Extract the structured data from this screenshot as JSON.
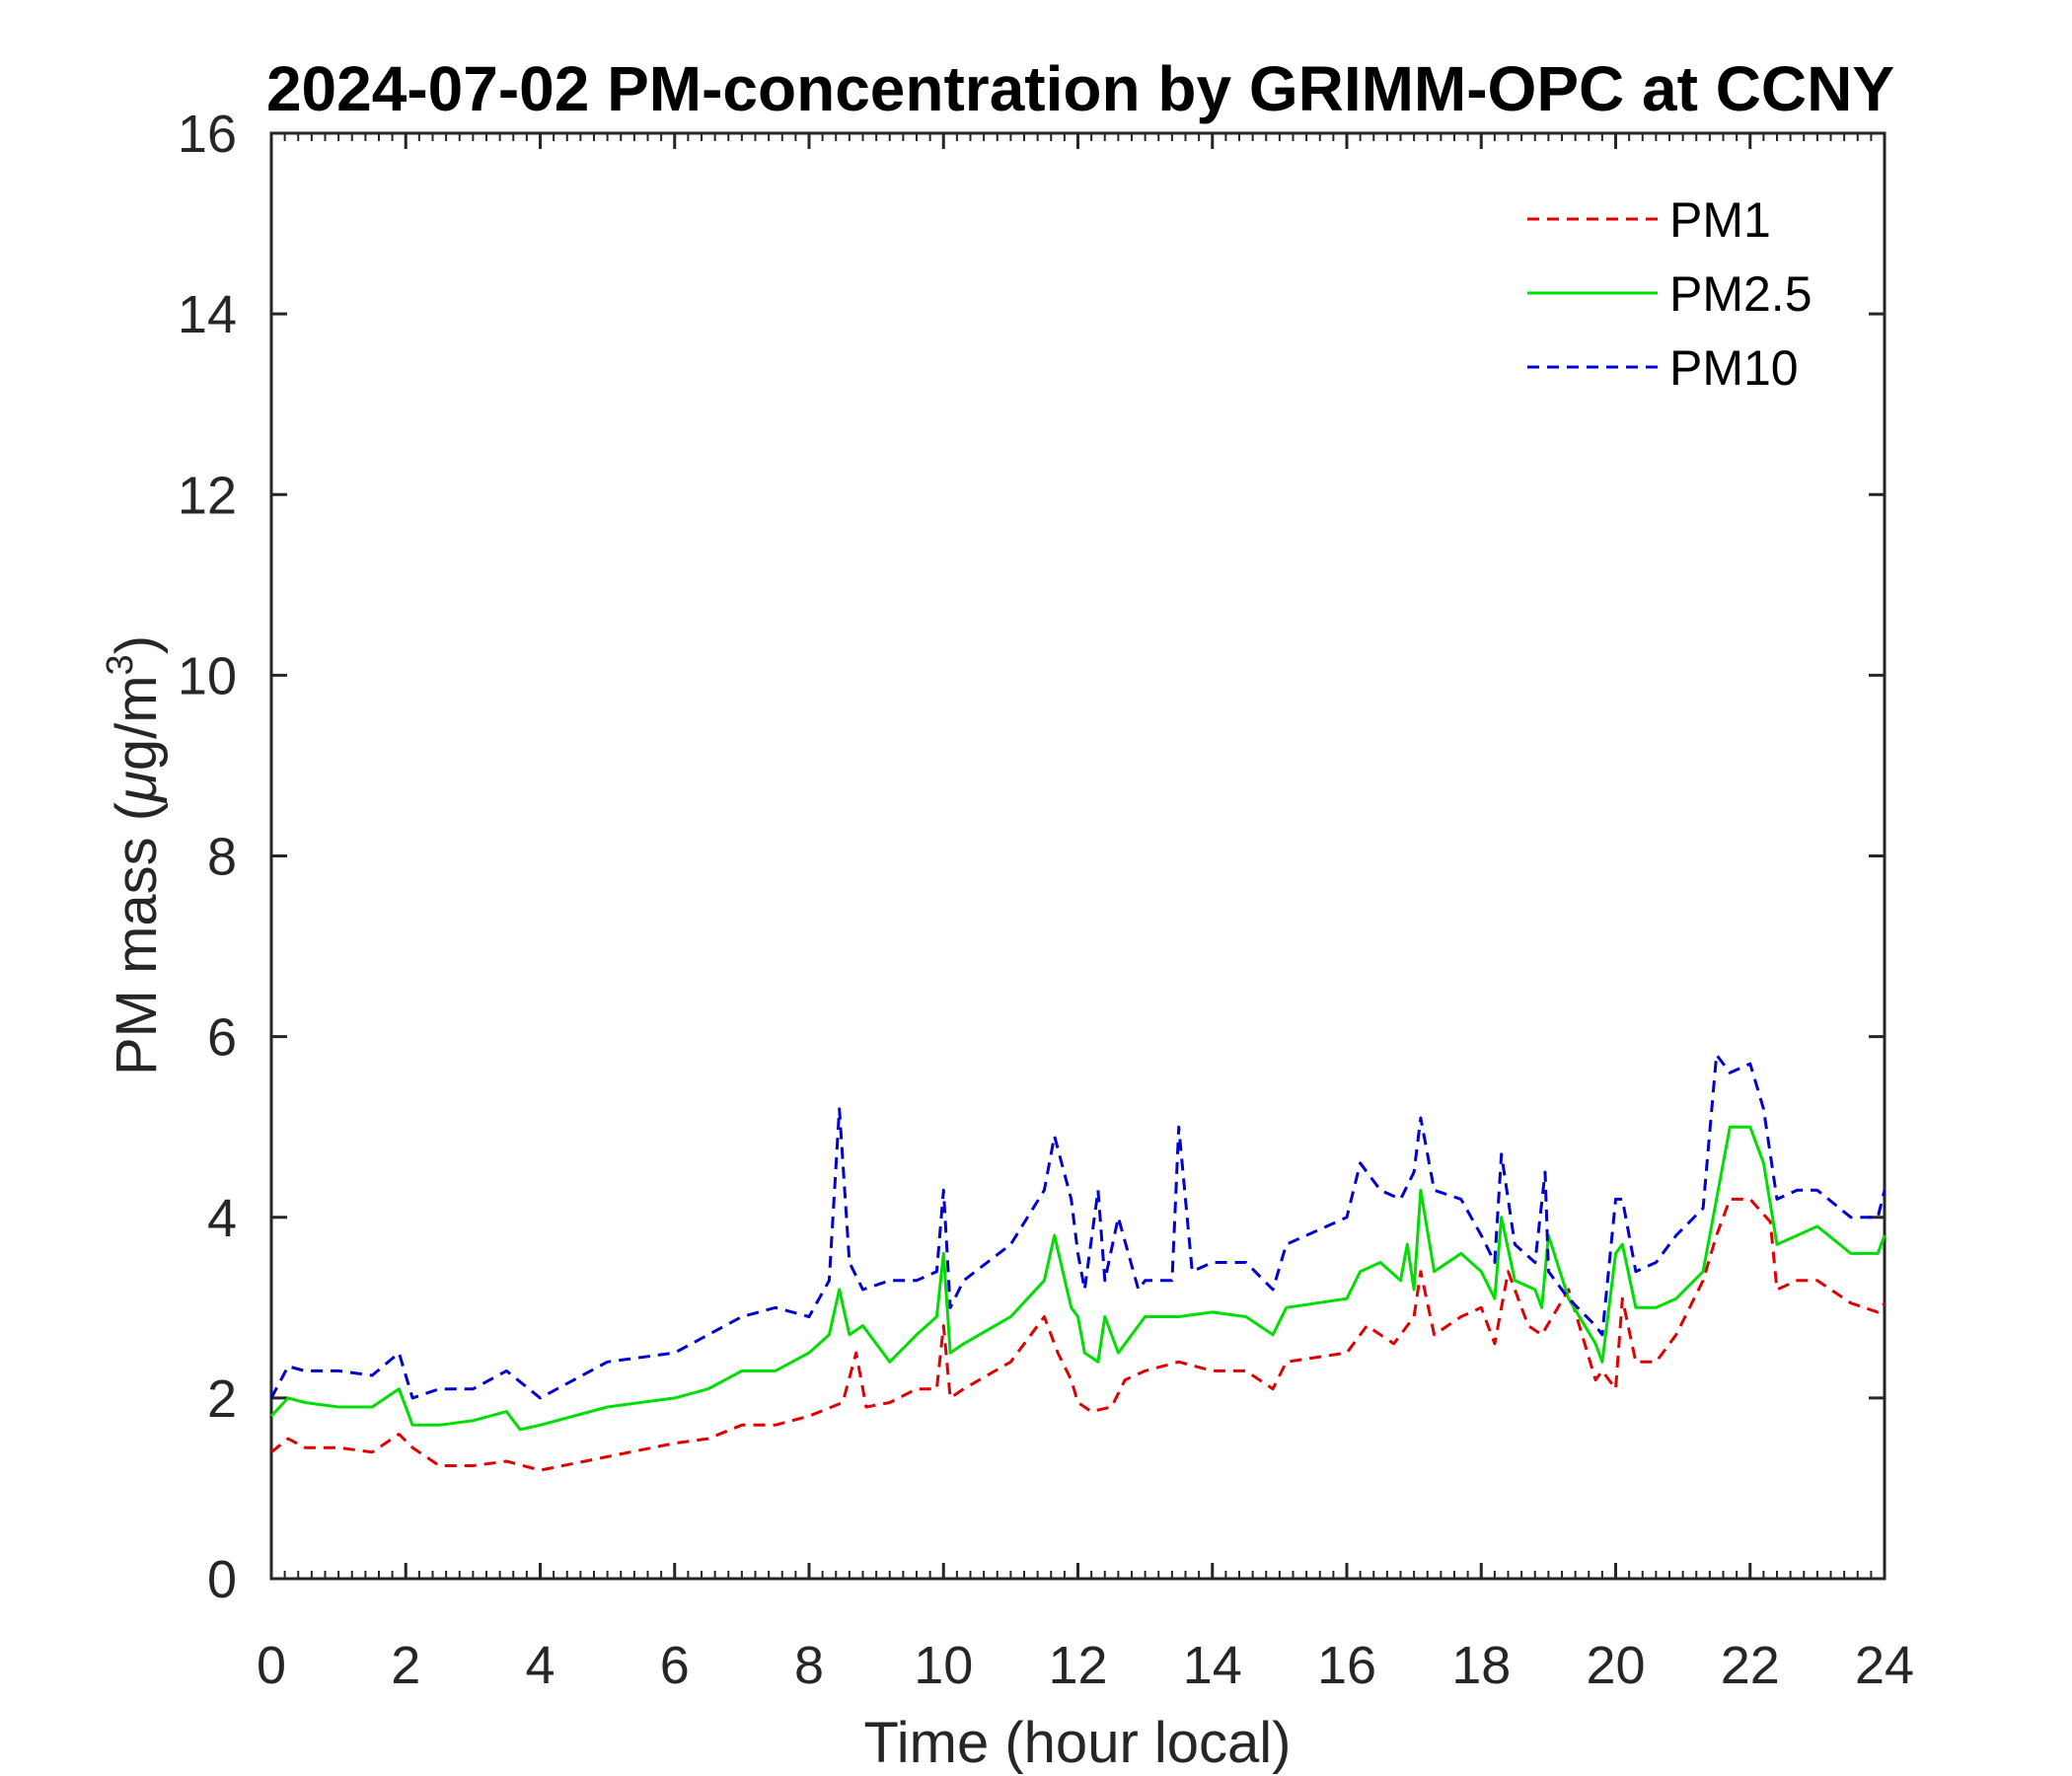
{
  "chart_data": {
    "type": "line",
    "title": "2024-07-02 PM-concentration by GRIMM-OPC at CCNY",
    "xlabel": "Time (hour local)",
    "ylabel": {
      "prefix": "PM mass (",
      "mu": "μ",
      "unit": "g/m",
      "sup": "3",
      "suffix": ")"
    },
    "xlim": [
      0,
      24
    ],
    "ylim": [
      0,
      16
    ],
    "xticks": [
      0,
      2,
      4,
      6,
      8,
      10,
      12,
      14,
      16,
      18,
      20,
      22,
      24
    ],
    "xtick_labels": [
      "0",
      "2",
      "4",
      "6",
      "8",
      "10",
      "12",
      "14",
      "16",
      "18",
      "20",
      "22",
      "24"
    ],
    "yticks": [
      0,
      2,
      4,
      6,
      8,
      10,
      12,
      14,
      16
    ],
    "ytick_labels": [
      "0",
      "2",
      "4",
      "6",
      "8",
      "10",
      "12",
      "14",
      "16"
    ],
    "grid": false,
    "legend_position": "top-right",
    "series": [
      {
        "name": "PM1",
        "color": "#e00000",
        "style": "dashed",
        "x": [
          0,
          0.25,
          0.5,
          1,
          1.5,
          1.9,
          2.1,
          2.5,
          3,
          3.5,
          4,
          5,
          6,
          6.5,
          7,
          7.5,
          8,
          8.5,
          8.7,
          8.85,
          9.2,
          9.6,
          9.9,
          10.0,
          10.1,
          10.3,
          11,
          11.5,
          11.7,
          11.9,
          12.0,
          12.2,
          12.5,
          12.7,
          13,
          13.5,
          14,
          14.5,
          14.9,
          15.1,
          16,
          16.3,
          16.7,
          17.0,
          17.1,
          17.3,
          17.7,
          18.0,
          18.2,
          18.4,
          18.7,
          18.9,
          19.3,
          19.7,
          19.8,
          20.0,
          20.1,
          20.3,
          20.6,
          20.9,
          21.3,
          21.5,
          21.7,
          22.0,
          22.3,
          22.4,
          22.7,
          23.0,
          23.5,
          23.9,
          24.0
        ],
        "y": [
          1.4,
          1.55,
          1.45,
          1.45,
          1.4,
          1.6,
          1.45,
          1.25,
          1.25,
          1.3,
          1.2,
          1.35,
          1.5,
          1.55,
          1.7,
          1.7,
          1.8,
          1.95,
          2.5,
          1.9,
          1.95,
          2.1,
          2.1,
          2.8,
          2.0,
          2.1,
          2.4,
          2.9,
          2.5,
          2.2,
          1.95,
          1.85,
          1.9,
          2.2,
          2.3,
          2.4,
          2.3,
          2.3,
          2.1,
          2.4,
          2.5,
          2.8,
          2.6,
          2.9,
          3.4,
          2.7,
          2.9,
          3.0,
          2.6,
          3.4,
          2.8,
          2.7,
          3.2,
          2.2,
          2.3,
          2.1,
          3.1,
          2.4,
          2.4,
          2.7,
          3.3,
          3.8,
          4.2,
          4.2,
          3.95,
          3.2,
          3.3,
          3.3,
          3.05,
          2.95,
          3.05
        ]
      },
      {
        "name": "PM2.5",
        "color": "#00dd00",
        "style": "solid",
        "x": [
          0,
          0.25,
          0.5,
          1,
          1.5,
          1.9,
          2.1,
          2.5,
          3,
          3.5,
          3.7,
          4,
          5,
          6,
          6.5,
          7,
          7.5,
          8,
          8.3,
          8.45,
          8.6,
          8.8,
          9.2,
          9.6,
          9.9,
          10.0,
          10.1,
          10.3,
          11,
          11.5,
          11.65,
          11.9,
          12.0,
          12.1,
          12.3,
          12.4,
          12.6,
          12.9,
          13,
          13.5,
          14,
          14.5,
          14.9,
          15.1,
          16,
          16.2,
          16.5,
          16.8,
          16.9,
          17.0,
          17.1,
          17.3,
          17.7,
          18.0,
          18.2,
          18.3,
          18.5,
          18.8,
          18.9,
          19.0,
          19.3,
          19.7,
          19.8,
          20.0,
          20.1,
          20.3,
          20.6,
          20.9,
          21.3,
          21.5,
          21.7,
          22.0,
          22.2,
          22.4,
          22.7,
          23.0,
          23.5,
          23.9,
          24.0
        ],
        "y": [
          1.8,
          2.0,
          1.95,
          1.9,
          1.9,
          2.1,
          1.7,
          1.7,
          1.75,
          1.85,
          1.65,
          1.7,
          1.9,
          2.0,
          2.1,
          2.3,
          2.3,
          2.5,
          2.7,
          3.2,
          2.7,
          2.8,
          2.4,
          2.7,
          2.9,
          3.6,
          2.5,
          2.6,
          2.9,
          3.3,
          3.8,
          3.0,
          2.9,
          2.5,
          2.4,
          2.9,
          2.5,
          2.8,
          2.9,
          2.9,
          2.95,
          2.9,
          2.7,
          3.0,
          3.1,
          3.4,
          3.5,
          3.3,
          3.7,
          3.2,
          4.3,
          3.4,
          3.6,
          3.4,
          3.1,
          4.0,
          3.3,
          3.2,
          3.0,
          3.8,
          3.1,
          2.6,
          2.4,
          3.6,
          3.7,
          3.0,
          3.0,
          3.1,
          3.4,
          4.2,
          5.0,
          5.0,
          4.6,
          3.7,
          3.8,
          3.9,
          3.6,
          3.6,
          3.8
        ]
      },
      {
        "name": "PM10",
        "color": "#0000d0",
        "style": "dashed",
        "x": [
          0,
          0.25,
          0.5,
          1,
          1.5,
          1.9,
          2.1,
          2.5,
          3,
          3.5,
          4,
          5,
          6,
          6.5,
          7,
          7.5,
          8,
          8.3,
          8.45,
          8.6,
          8.8,
          9.2,
          9.6,
          9.9,
          10.0,
          10.1,
          10.3,
          11,
          11.5,
          11.65,
          11.9,
          12.0,
          12.1,
          12.3,
          12.4,
          12.6,
          12.9,
          13,
          13.4,
          13.5,
          13.7,
          14,
          14.5,
          14.9,
          15.1,
          16,
          16.2,
          16.5,
          16.8,
          17.0,
          17.1,
          17.3,
          17.7,
          18.0,
          18.2,
          18.3,
          18.5,
          18.8,
          18.95,
          19.0,
          19.3,
          19.7,
          19.8,
          20.0,
          20.1,
          20.3,
          20.6,
          20.9,
          21.3,
          21.5,
          21.7,
          22.0,
          22.2,
          22.4,
          22.7,
          23.0,
          23.5,
          23.9,
          24.0
        ],
        "y": [
          2.0,
          2.35,
          2.3,
          2.3,
          2.25,
          2.5,
          2.0,
          2.1,
          2.1,
          2.3,
          2.0,
          2.4,
          2.5,
          2.7,
          2.9,
          3.0,
          2.9,
          3.3,
          5.2,
          3.5,
          3.2,
          3.3,
          3.3,
          3.4,
          4.3,
          3.0,
          3.3,
          3.7,
          4.3,
          4.9,
          4.2,
          3.6,
          3.2,
          4.3,
          3.3,
          4.0,
          3.2,
          3.3,
          3.3,
          5.0,
          3.4,
          3.5,
          3.5,
          3.2,
          3.7,
          4.0,
          4.6,
          4.3,
          4.2,
          4.5,
          5.1,
          4.3,
          4.2,
          3.8,
          3.5,
          4.7,
          3.7,
          3.5,
          4.5,
          3.4,
          3.1,
          2.8,
          2.7,
          4.2,
          4.2,
          3.4,
          3.5,
          3.8,
          4.1,
          5.8,
          5.6,
          5.7,
          5.2,
          4.2,
          4.3,
          4.3,
          4.0,
          4.0,
          4.3
        ]
      }
    ]
  }
}
